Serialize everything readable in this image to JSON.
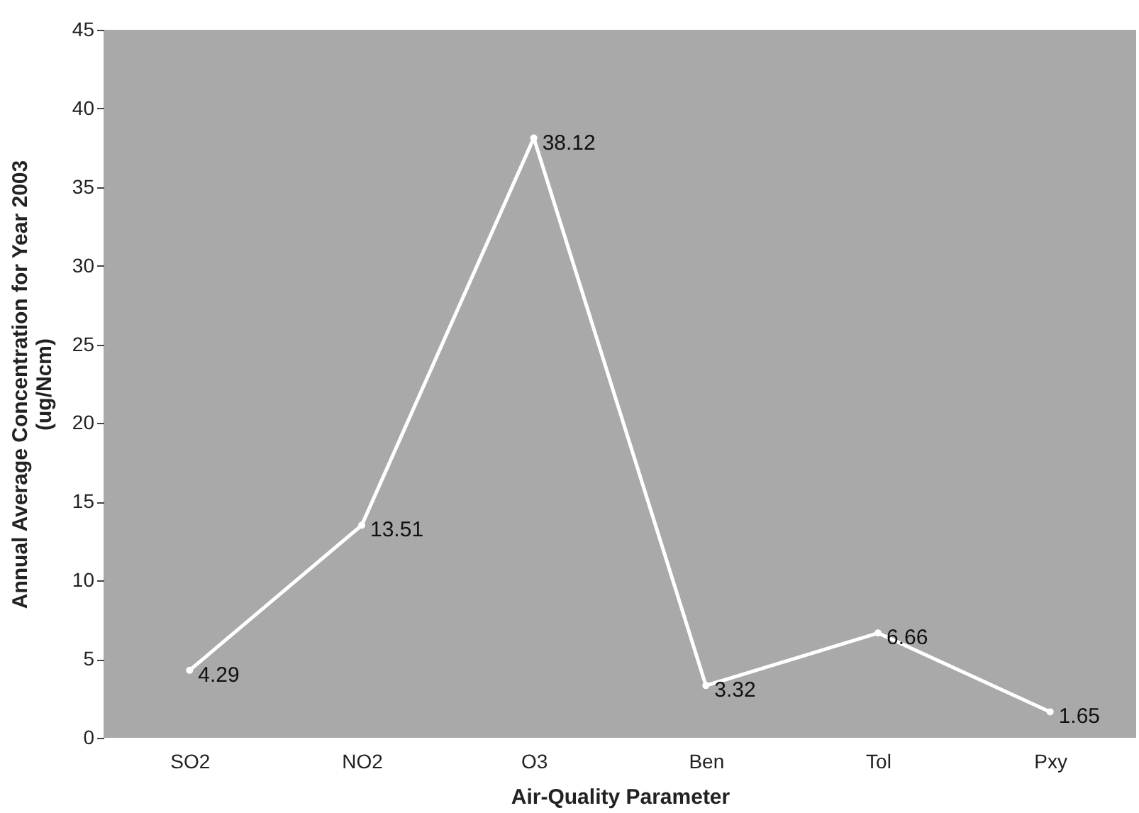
{
  "chart_data": {
    "type": "line",
    "xlabel": "Air-Quality Parameter",
    "ylabel": "Annual Average Concentration for Year 2003\n(ug/Ncm)",
    "categories": [
      "SO2",
      "NO2",
      "O3",
      "Ben",
      "Tol",
      "Pxy"
    ],
    "series": [
      {
        "color": "#ffffff",
        "values": [
          4.29,
          13.51,
          38.12,
          3.32,
          6.66,
          1.65
        ]
      }
    ],
    "ylim": [
      0,
      45
    ],
    "yticks": [
      0,
      5,
      10,
      15,
      20,
      25,
      30,
      35,
      40,
      45
    ],
    "data_labels": true,
    "marker": "circle",
    "grid": false,
    "line_style": "solid"
  }
}
